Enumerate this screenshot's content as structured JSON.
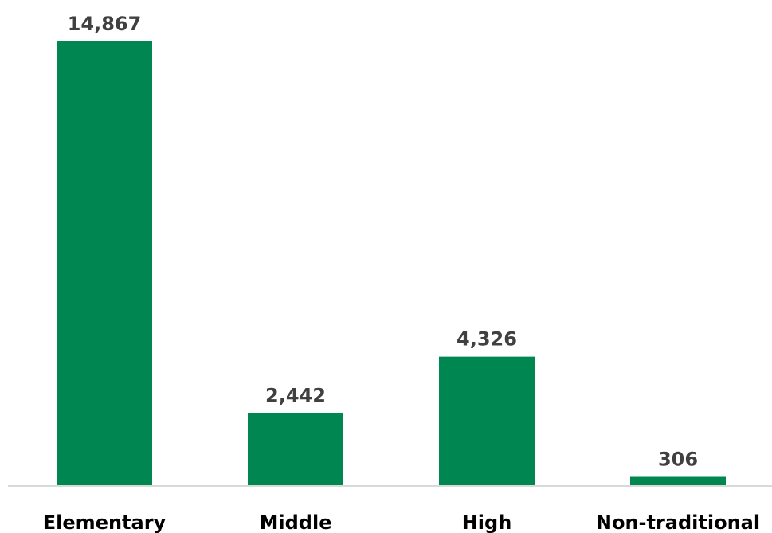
{
  "chart_data": {
    "type": "bar",
    "categories": [
      "Elementary",
      "Middle",
      "High",
      "Non-traditional"
    ],
    "values": [
      14867,
      2442,
      4326,
      306
    ],
    "data_labels": [
      "14,867",
      "2,442",
      "4,326",
      "306"
    ],
    "title": "",
    "xlabel": "",
    "ylabel": "",
    "ylim": [
      0,
      14867
    ],
    "grid": false,
    "legend": "none",
    "colors": {
      "bar": "#008751",
      "axis": "#d9d9d9",
      "data_label": "#404040",
      "tick_label": "#000000"
    }
  }
}
